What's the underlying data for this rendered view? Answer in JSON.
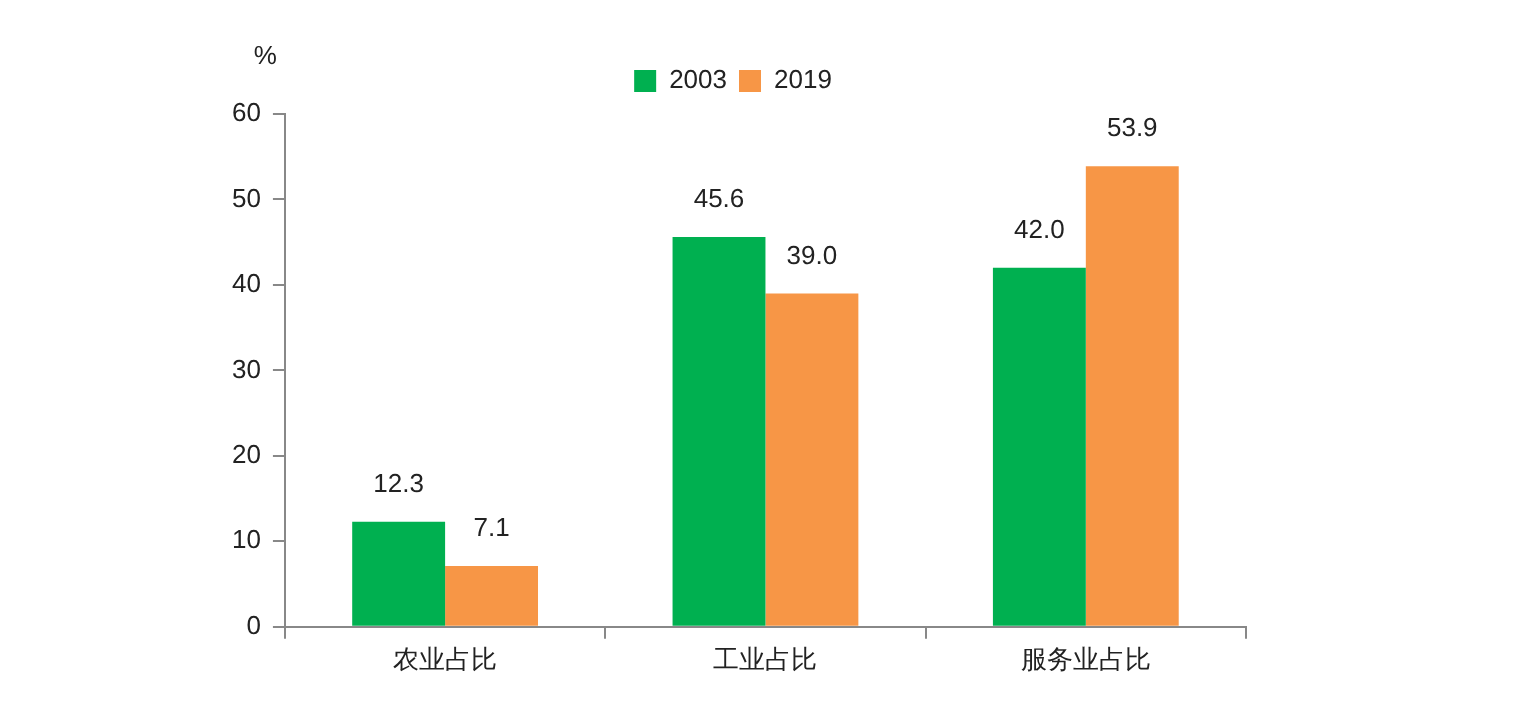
{
  "chart_data": {
    "type": "bar",
    "ylabel": "%",
    "categories": [
      "农业占比",
      "工业占比",
      "服务业占比"
    ],
    "series": [
      {
        "name": "2003",
        "color": "#00b050",
        "values": [
          12.3,
          45.6,
          42.0
        ],
        "value_labels": [
          "12.3",
          "45.6",
          "42.0"
        ]
      },
      {
        "name": "2019",
        "color": "#f79646",
        "values": [
          7.1,
          39.0,
          53.9
        ],
        "value_labels": [
          "7.1",
          "39.0",
          "53.9"
        ]
      }
    ],
    "ylim": [
      0,
      60
    ],
    "yticks": [
      0,
      10,
      20,
      30,
      40,
      50,
      60
    ],
    "grid": false,
    "legend": "top"
  }
}
